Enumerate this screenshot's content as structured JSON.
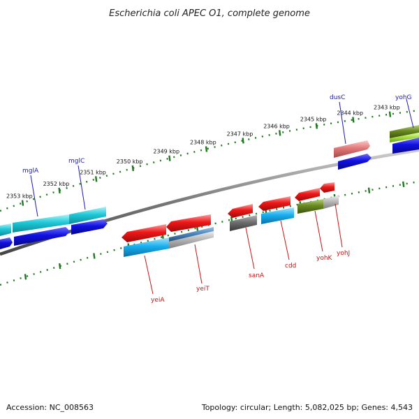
{
  "title": "Escherichia coli APEC O1, complete genome",
  "accession_line": "Accession: NC_008563",
  "summary_line": "Topology: circular; Length: 5,082,025 bp; Genes: 4,543",
  "tick_labels": [
    "2353 kbp",
    "2352 kbp",
    "2351 kbp",
    "2350 kbp",
    "2349 kbp",
    "2348 kbp",
    "2347 kbp",
    "2346 kbp",
    "2345 kbp",
    "2344 kbp",
    "2343 kbp"
  ],
  "forward_labels": [
    "mglA",
    "mglC",
    "dusC",
    "yohG"
  ],
  "reverse_labels": [
    "yeiA",
    "yeiT",
    "sanA",
    "cdd",
    "yohK",
    "yohJ"
  ],
  "colors": {
    "backbone": "#7a7a7a",
    "ticks": "#1f7a1f",
    "red": "#e8101a",
    "cyan": "#1ec8d8",
    "blue": "#1010e0",
    "sky": "#18b0f0",
    "steel": "#4a86c0",
    "gray": "#6e6e6e",
    "olive": "#6a8a20",
    "lime": "#a8e040",
    "pink": "#e07878",
    "silver": "#b8b8b8"
  }
}
